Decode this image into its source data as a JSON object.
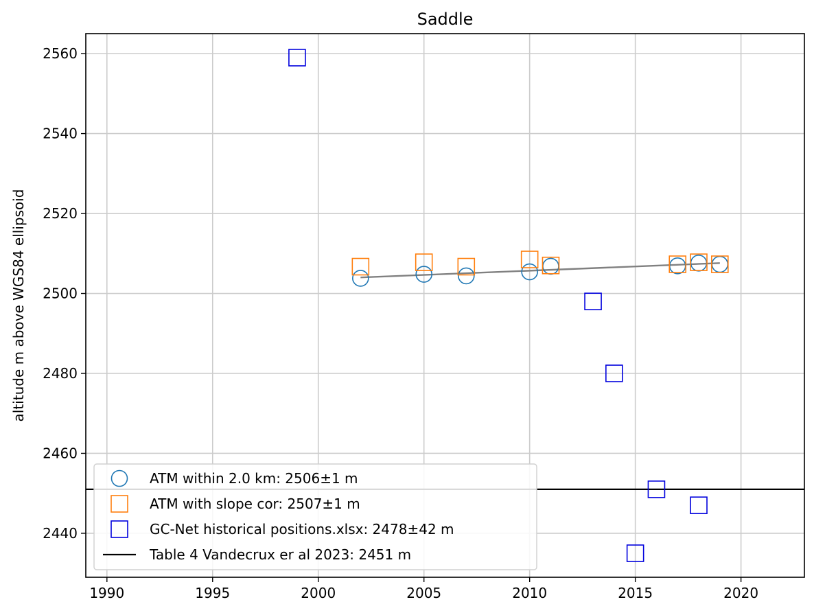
{
  "chart_data": {
    "type": "scatter",
    "title": "Saddle",
    "xlabel": "",
    "ylabel": "altitude m above WGS84 ellipsoid",
    "xlim": [
      1989,
      2023
    ],
    "ylim": [
      2429,
      2565
    ],
    "xticks": [
      1990,
      1995,
      2000,
      2005,
      2010,
      2015,
      2020
    ],
    "yticks": [
      2440,
      2460,
      2480,
      2500,
      2520,
      2540,
      2560
    ],
    "grid": true,
    "legend_position": "lower-left",
    "series": [
      {
        "name": "ATM within 2.0 km: 2506±1 m",
        "marker": "circle-open",
        "color": "#1f77b4",
        "x": [
          2002,
          2005,
          2007,
          2010,
          2011,
          2017,
          2018,
          2019
        ],
        "y": [
          2503.8,
          2504.8,
          2504.4,
          2505.4,
          2506.8,
          2506.9,
          2507.6,
          2507.3
        ]
      },
      {
        "name": "ATM with slope cor: 2507±1 m",
        "marker": "square-open",
        "color": "#ff7f0e",
        "x": [
          2002,
          2005,
          2007,
          2010,
          2011,
          2017,
          2018,
          2019
        ],
        "y": [
          2506.7,
          2507.8,
          2506.7,
          2508.5,
          2507.0,
          2507.3,
          2507.8,
          2507.3
        ]
      },
      {
        "name": "GC-Net historical positions.xlsx: 2478±42 m",
        "marker": "square-open",
        "color": "#0000dd",
        "x": [
          1999,
          2013,
          2014,
          2015,
          2016,
          2018
        ],
        "y": [
          2559,
          2498,
          2480,
          2435,
          2451,
          2447
        ]
      },
      {
        "name": "Table 4 Vandecrux er al 2023: 2451 m",
        "marker": "hline",
        "color": "#000000",
        "y": 2451
      }
    ],
    "trend_line": {
      "color": "#808080",
      "x": [
        2002,
        2019
      ],
      "y": [
        2504.0,
        2507.6
      ]
    }
  }
}
